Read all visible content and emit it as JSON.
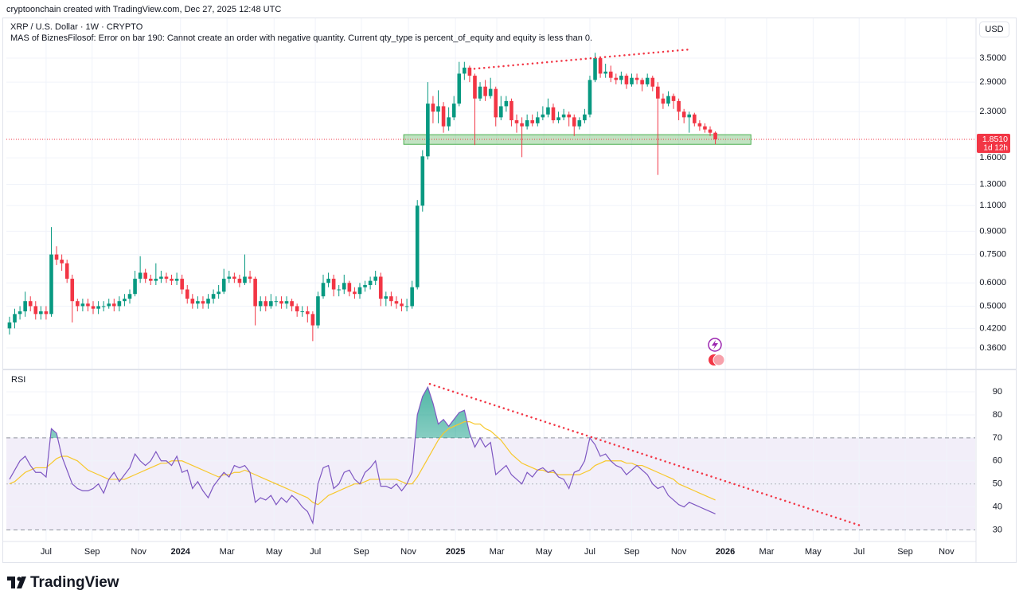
{
  "header": "cryptoonchain created with TradingView.com, Dec 27, 2025 12:48 UTC",
  "footer": {
    "brand": "TradingView"
  },
  "chart_data": [
    {
      "type": "candlestick",
      "title": "XRP / U.S. Dollar · 1W · CRYPTO",
      "subtitle": "MAS of BiznesFilosof: Error on bar 190: Cannot create an order with negative quantity. Current qty_type is percent_of_equity and equity is less than 0.",
      "currency": "USD",
      "log_scale": true,
      "grid": true,
      "colors": {
        "up": "#089981",
        "down": "#f23645"
      },
      "x": [
        0,
        1,
        2,
        3,
        4,
        5,
        6,
        7,
        8,
        9,
        10,
        11,
        12,
        13,
        14,
        15,
        16,
        17,
        18,
        19,
        20,
        21,
        22,
        23,
        24,
        25,
        26,
        27,
        28,
        29,
        30,
        31,
        32,
        33,
        34,
        35,
        36,
        37,
        38,
        39,
        40,
        41,
        42,
        43,
        44,
        45,
        46,
        47,
        48,
        49,
        50,
        51,
        52,
        53,
        54,
        55,
        56,
        57,
        58,
        59,
        60,
        61,
        62,
        63,
        64,
        65,
        66,
        67,
        68,
        69,
        70,
        71,
        72,
        73,
        74,
        75,
        76,
        77,
        78,
        79,
        80,
        81,
        82,
        83,
        84,
        85,
        86,
        87,
        88,
        89,
        90,
        91,
        92,
        93,
        94,
        95,
        96,
        97,
        98,
        99,
        100,
        101,
        102,
        103,
        104,
        105,
        106,
        107,
        108,
        109,
        110,
        111,
        112,
        113,
        114,
        115,
        116,
        117,
        118,
        119,
        120,
        121,
        122,
        123,
        124,
        125,
        126,
        127,
        128,
        129,
        130,
        131,
        132,
        133,
        134,
        135
      ],
      "open": [
        0.42,
        0.44,
        0.47,
        0.48,
        0.52,
        0.5,
        0.47,
        0.48,
        0.47,
        0.75,
        0.72,
        0.7,
        0.62,
        0.52,
        0.5,
        0.51,
        0.5,
        0.49,
        0.5,
        0.5,
        0.51,
        0.5,
        0.52,
        0.53,
        0.55,
        0.62,
        0.65,
        0.62,
        0.61,
        0.62,
        0.63,
        0.62,
        0.61,
        0.62,
        0.57,
        0.53,
        0.51,
        0.52,
        0.51,
        0.53,
        0.55,
        0.56,
        0.62,
        0.63,
        0.62,
        0.6,
        0.63,
        0.62,
        0.5,
        0.52,
        0.5,
        0.52,
        0.52,
        0.51,
        0.52,
        0.5,
        0.48,
        0.48,
        0.47,
        0.43,
        0.54,
        0.6,
        0.62,
        0.57,
        0.57,
        0.6,
        0.56,
        0.55,
        0.58,
        0.59,
        0.61,
        0.63,
        0.53,
        0.54,
        0.52,
        0.51,
        0.5,
        0.5,
        0.58,
        1.1,
        1.62,
        2.45,
        2.3,
        2.4,
        2.05,
        2.2,
        2.45,
        3.1,
        3.25,
        3.05,
        2.55,
        2.8,
        2.6,
        2.75,
        2.2,
        2.4,
        2.5,
        2.15,
        2.1,
        2.05,
        2.15,
        2.1,
        2.2,
        2.25,
        2.38,
        2.15,
        2.2,
        2.25,
        2.2,
        2.05,
        2.15,
        2.25,
        2.95,
        3.5,
        3.1,
        3.15,
        3.0,
        2.95,
        3.05,
        2.85,
        3.0,
        2.95,
        2.85,
        3.0,
        2.8,
        2.55,
        2.45,
        2.6,
        2.5,
        2.3,
        2.2,
        2.25,
        2.1,
        2.05,
        2.0,
        1.95
      ],
      "high": [
        0.46,
        0.49,
        0.5,
        0.56,
        0.54,
        0.52,
        0.5,
        0.5,
        0.93,
        0.8,
        0.75,
        0.72,
        0.64,
        0.53,
        0.53,
        0.53,
        0.52,
        0.52,
        0.52,
        0.53,
        0.53,
        0.54,
        0.55,
        0.57,
        0.66,
        0.74,
        0.67,
        0.64,
        0.7,
        0.66,
        0.65,
        0.64,
        0.65,
        0.64,
        0.59,
        0.55,
        0.54,
        0.54,
        0.55,
        0.57,
        0.59,
        0.67,
        0.66,
        0.65,
        0.64,
        0.75,
        0.66,
        0.63,
        0.54,
        0.54,
        0.55,
        0.54,
        0.54,
        0.54,
        0.53,
        0.51,
        0.5,
        0.5,
        0.48,
        0.56,
        0.64,
        0.65,
        0.64,
        0.59,
        0.64,
        0.61,
        0.58,
        0.6,
        0.61,
        0.63,
        0.66,
        0.65,
        0.56,
        0.56,
        0.54,
        0.53,
        0.53,
        0.61,
        1.15,
        1.7,
        2.9,
        2.6,
        2.72,
        2.48,
        2.38,
        2.6,
        3.4,
        3.4,
        3.3,
        3.1,
        2.9,
        2.95,
        3.0,
        2.8,
        2.6,
        2.6,
        2.55,
        2.25,
        2.2,
        2.25,
        2.25,
        2.3,
        2.4,
        2.55,
        2.45,
        2.3,
        2.35,
        2.3,
        2.25,
        2.2,
        2.35,
        3.05,
        3.65,
        3.55,
        3.35,
        3.3,
        3.1,
        3.15,
        3.1,
        3.1,
        3.1,
        3.0,
        3.1,
        3.05,
        2.9,
        2.65,
        2.7,
        2.65,
        2.55,
        2.35,
        2.3,
        2.28,
        2.15,
        2.1,
        2.05,
        1.97
      ],
      "low": [
        0.4,
        0.42,
        0.45,
        0.46,
        0.48,
        0.45,
        0.45,
        0.45,
        0.46,
        0.69,
        0.66,
        0.6,
        0.44,
        0.48,
        0.48,
        0.48,
        0.47,
        0.47,
        0.48,
        0.49,
        0.48,
        0.48,
        0.5,
        0.51,
        0.54,
        0.6,
        0.6,
        0.59,
        0.59,
        0.6,
        0.6,
        0.59,
        0.59,
        0.55,
        0.51,
        0.49,
        0.49,
        0.49,
        0.49,
        0.51,
        0.53,
        0.55,
        0.6,
        0.6,
        0.58,
        0.59,
        0.6,
        0.43,
        0.48,
        0.48,
        0.49,
        0.5,
        0.49,
        0.49,
        0.48,
        0.46,
        0.46,
        0.44,
        0.38,
        0.42,
        0.53,
        0.58,
        0.54,
        0.54,
        0.55,
        0.54,
        0.53,
        0.53,
        0.56,
        0.57,
        0.59,
        0.5,
        0.5,
        0.5,
        0.49,
        0.48,
        0.48,
        0.49,
        0.57,
        1.05,
        1.58,
        2.1,
        2.1,
        1.95,
        1.98,
        2.15,
        2.4,
        2.95,
        2.9,
        1.77,
        2.5,
        2.5,
        2.55,
        2.05,
        2.15,
        2.3,
        2.05,
        1.95,
        1.61,
        2.0,
        2.05,
        2.05,
        2.15,
        2.2,
        2.1,
        2.1,
        2.15,
        2.05,
        1.9,
        2.0,
        2.1,
        2.2,
        2.9,
        3.0,
        3.0,
        2.9,
        2.85,
        2.85,
        2.75,
        2.8,
        2.85,
        2.7,
        2.8,
        2.7,
        1.4,
        2.35,
        2.4,
        2.35,
        2.15,
        2.1,
        1.95,
        2.05,
        1.98,
        1.95,
        1.9,
        1.78
      ],
      "close": [
        0.44,
        0.47,
        0.48,
        0.52,
        0.5,
        0.47,
        0.48,
        0.47,
        0.75,
        0.72,
        0.7,
        0.62,
        0.52,
        0.5,
        0.51,
        0.5,
        0.49,
        0.5,
        0.5,
        0.51,
        0.5,
        0.52,
        0.53,
        0.55,
        0.62,
        0.65,
        0.62,
        0.61,
        0.62,
        0.63,
        0.62,
        0.61,
        0.62,
        0.57,
        0.53,
        0.51,
        0.52,
        0.51,
        0.53,
        0.55,
        0.56,
        0.62,
        0.63,
        0.62,
        0.6,
        0.63,
        0.62,
        0.5,
        0.52,
        0.5,
        0.52,
        0.52,
        0.51,
        0.52,
        0.5,
        0.48,
        0.48,
        0.47,
        0.43,
        0.54,
        0.6,
        0.62,
        0.57,
        0.57,
        0.6,
        0.56,
        0.55,
        0.58,
        0.59,
        0.61,
        0.63,
        0.53,
        0.54,
        0.52,
        0.51,
        0.5,
        0.5,
        0.58,
        1.1,
        1.62,
        2.45,
        2.3,
        2.4,
        2.05,
        2.2,
        2.45,
        3.1,
        3.25,
        3.05,
        2.55,
        2.8,
        2.6,
        2.75,
        2.2,
        2.4,
        2.5,
        2.15,
        2.1,
        2.05,
        2.15,
        2.1,
        2.2,
        2.25,
        2.38,
        2.15,
        2.2,
        2.25,
        2.2,
        2.05,
        2.15,
        2.25,
        2.95,
        3.5,
        3.1,
        3.15,
        3.0,
        2.95,
        3.05,
        2.85,
        3.0,
        2.95,
        2.85,
        3.0,
        2.8,
        2.55,
        2.45,
        2.6,
        2.5,
        2.3,
        2.2,
        2.25,
        2.1,
        2.05,
        2.0,
        1.95,
        1.851
      ],
      "ylim": [
        0.308,
        4.58
      ],
      "yticks": [
        {
          "value": 3.5,
          "label": "3.5000"
        },
        {
          "value": 2.9,
          "label": "2.9000"
        },
        {
          "value": 2.3,
          "label": "2.3000"
        },
        {
          "value": 1.6,
          "label": "1.6000"
        },
        {
          "value": 1.3,
          "label": "1.3000"
        },
        {
          "value": 1.1,
          "label": "1.1000"
        },
        {
          "value": 0.9,
          "label": "0.9000"
        },
        {
          "value": 0.75,
          "label": "0.7500"
        },
        {
          "value": 0.6,
          "label": "0.6000"
        },
        {
          "value": 0.5,
          "label": "0.5000"
        },
        {
          "value": 0.42,
          "label": "0.4200"
        },
        {
          "value": 0.36,
          "label": "0.3600"
        }
      ],
      "last_price": {
        "value": 1.851,
        "label": "1.8510",
        "countdown": "1d 12h",
        "color": "#f23645"
      },
      "zone": {
        "x": [
          75.4,
          141.8
        ],
        "y": [
          1.78,
          1.92
        ],
        "color": "#4caf50"
      },
      "trendlines": [
        {
          "x": [
            88,
            130.2
          ],
          "y": [
            3.21,
            3.75
          ],
          "color": "#f23645"
        }
      ]
    },
    {
      "type": "line",
      "title": "RSI",
      "grid": true,
      "x": [
        0,
        1,
        2,
        3,
        4,
        5,
        6,
        7,
        8,
        9,
        10,
        11,
        12,
        13,
        14,
        15,
        16,
        17,
        18,
        19,
        20,
        21,
        22,
        23,
        24,
        25,
        26,
        27,
        28,
        29,
        30,
        31,
        32,
        33,
        34,
        35,
        36,
        37,
        38,
        39,
        40,
        41,
        42,
        43,
        44,
        45,
        46,
        47,
        48,
        49,
        50,
        51,
        52,
        53,
        54,
        55,
        56,
        57,
        58,
        59,
        60,
        61,
        62,
        63,
        64,
        65,
        66,
        67,
        68,
        69,
        70,
        71,
        72,
        73,
        74,
        75,
        76,
        77,
        78,
        79,
        80,
        81,
        82,
        83,
        84,
        85,
        86,
        87,
        88,
        89,
        90,
        91,
        92,
        93,
        94,
        95,
        96,
        97,
        98,
        99,
        100,
        101,
        102,
        103,
        104,
        105,
        106,
        107,
        108,
        109,
        110,
        111,
        112,
        113,
        114,
        115,
        116,
        117,
        118,
        119,
        120,
        121,
        122,
        123,
        124,
        125,
        126,
        127,
        128,
        129,
        130,
        131,
        132,
        133,
        134,
        135
      ],
      "series": [
        {
          "color": "#7e57c2",
          "values": [
            52,
            56,
            60,
            62,
            58,
            55,
            55,
            53,
            74,
            72,
            62,
            56,
            50,
            48,
            47,
            47,
            48,
            50,
            46,
            52,
            55,
            51,
            54,
            57,
            63,
            60,
            58,
            60,
            64,
            60,
            60,
            58,
            62,
            55,
            56,
            48,
            51,
            47,
            44,
            49,
            52,
            55,
            53,
            58,
            57,
            58,
            55,
            42,
            44,
            43,
            45,
            41,
            44,
            42,
            45,
            43,
            40,
            38,
            33,
            50,
            57,
            58,
            48,
            50,
            55,
            56,
            52,
            50,
            55,
            57,
            60,
            49,
            49,
            48,
            50,
            47,
            50,
            55,
            80,
            88,
            92,
            85,
            76,
            78,
            75,
            78,
            81,
            82,
            72,
            66,
            70,
            66,
            68,
            54,
            56,
            58,
            54,
            52,
            50,
            55,
            53,
            56,
            57,
            55,
            56,
            53,
            52,
            48,
            55,
            56,
            60,
            70,
            67,
            62,
            63,
            60,
            58,
            57,
            54,
            56,
            58,
            56,
            54,
            50,
            48,
            49,
            45,
            43,
            41,
            40,
            42,
            41,
            40,
            39,
            38,
            37
          ]
        },
        {
          "color": "#f7c82c",
          "values": [
            50,
            51,
            53,
            55,
            56,
            57,
            57,
            57,
            59,
            61,
            62,
            62,
            61,
            60,
            58,
            56,
            55,
            54,
            53,
            52,
            52,
            52,
            52,
            53,
            54,
            55,
            56,
            57,
            58,
            59,
            59,
            60,
            60,
            60,
            59,
            58,
            57,
            56,
            55,
            54,
            53,
            54,
            54,
            55,
            55,
            56,
            55,
            54,
            53,
            52,
            51,
            50,
            49,
            48,
            47,
            46,
            45,
            44,
            42,
            41,
            43,
            45,
            46,
            47,
            48,
            49,
            50,
            50,
            51,
            52,
            52,
            52,
            52,
            52,
            52,
            51,
            50,
            50,
            53,
            57,
            61,
            65,
            69,
            72,
            74,
            75,
            76,
            77,
            77,
            76,
            76,
            74,
            73,
            71,
            69,
            66,
            63,
            61,
            59,
            58,
            57,
            56,
            56,
            55,
            55,
            54,
            54,
            54,
            54,
            54,
            55,
            56,
            58,
            59,
            60,
            60,
            60,
            60,
            59,
            59,
            58,
            58,
            57,
            56,
            55,
            54,
            53,
            52,
            50,
            49,
            48,
            47,
            46,
            45,
            44,
            43
          ]
        }
      ],
      "ylim": [
        25,
        99
      ],
      "yticks": [
        30,
        40,
        50,
        60,
        70,
        80,
        90
      ],
      "band": [
        30,
        70
      ],
      "midline": 50,
      "band_color": "#7e57c2",
      "overbought_fill": "#089981",
      "trendlines": [
        {
          "x": [
            80.4,
            163
          ],
          "y": [
            93.4,
            31.7
          ],
          "color": "#f23645"
        }
      ],
      "xlim": [
        -0.6,
        184.7
      ],
      "xticks": [
        {
          "value": 7,
          "label": "Jul"
        },
        {
          "value": 15.8,
          "label": "Sep"
        },
        {
          "value": 24.7,
          "label": "Nov"
        },
        {
          "value": 32.7,
          "label": "2024"
        },
        {
          "value": 41.6,
          "label": "Mar"
        },
        {
          "value": 50.6,
          "label": "May"
        },
        {
          "value": 58.5,
          "label": "Jul"
        },
        {
          "value": 67.3,
          "label": "Sep"
        },
        {
          "value": 76.3,
          "label": "Nov"
        },
        {
          "value": 85.3,
          "label": "2025"
        },
        {
          "value": 93.2,
          "label": "Mar"
        },
        {
          "value": 102.2,
          "label": "May"
        },
        {
          "value": 111,
          "label": "Jul"
        },
        {
          "value": 119,
          "label": "Sep"
        },
        {
          "value": 128,
          "label": "Nov"
        },
        {
          "value": 136.9,
          "label": "2026"
        },
        {
          "value": 144.8,
          "label": "Mar"
        },
        {
          "value": 153.7,
          "label": "May"
        },
        {
          "value": 162.5,
          "label": "Jul"
        },
        {
          "value": 171.3,
          "label": "Sep"
        },
        {
          "value": 179.2,
          "label": "Nov"
        }
      ]
    }
  ]
}
